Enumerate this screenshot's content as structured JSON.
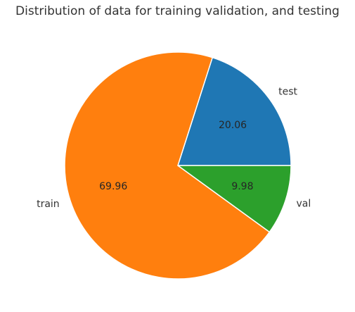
{
  "chart_data": {
    "type": "pie",
    "title": "Distribution of data for training validation, and testing",
    "slices": [
      {
        "label": "test",
        "value": 20.06,
        "display": "20.06",
        "color": "#1f77b4"
      },
      {
        "label": "train",
        "value": 69.96,
        "display": "69.96",
        "color": "#ff7f0e"
      },
      {
        "label": "val",
        "value": 9.98,
        "display": "9.98",
        "color": "#2ca02c"
      }
    ],
    "start_angle": 0,
    "direction": "counterclockwise",
    "legend": "none"
  }
}
